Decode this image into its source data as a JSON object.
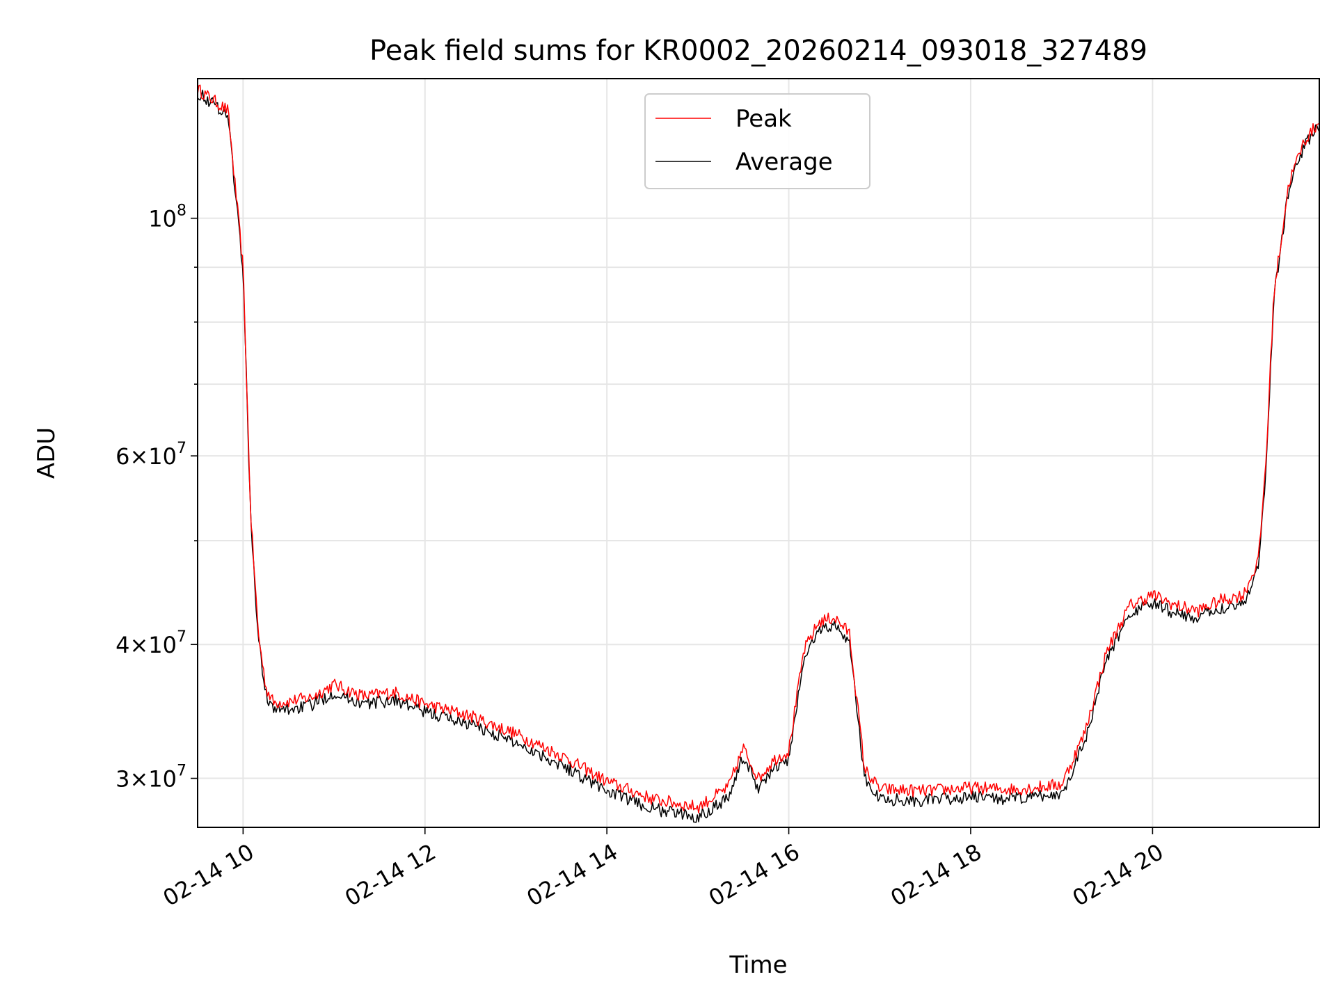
{
  "chart_data": {
    "type": "line",
    "title": "Peak field sums for KR0002_20260214_093018_327489",
    "xlabel": "Time",
    "ylabel": "ADU",
    "y_scale": "log",
    "grid": true,
    "legend_position": "top-center",
    "xlim": [
      "02-14 09:30",
      "02-14 21:50"
    ],
    "ylim": [
      27000000,
      135000000
    ],
    "x_ticks": [
      "02-14 10",
      "02-14 12",
      "02-14 14",
      "02-14 16",
      "02-14 18",
      "02-14 20"
    ],
    "y_ticks": [
      {
        "value": 30000000,
        "mantissa": "3",
        "exponent": "7"
      },
      {
        "value": 40000000,
        "mantissa": "4",
        "exponent": "7"
      },
      {
        "value": 60000000,
        "mantissa": "6",
        "exponent": "7"
      },
      {
        "value": 100000000,
        "base": "10",
        "exponent": "8"
      }
    ],
    "x": [
      "02-14 09:30",
      "02-14 09:40",
      "02-14 09:50",
      "02-14 10:00",
      "02-14 10:05",
      "02-14 10:10",
      "02-14 10:15",
      "02-14 10:20",
      "02-14 10:30",
      "02-14 10:45",
      "02-14 11:00",
      "02-14 11:10",
      "02-14 11:20",
      "02-14 11:40",
      "02-14 12:00",
      "02-14 12:30",
      "02-14 13:00",
      "02-14 13:30",
      "02-14 14:00",
      "02-14 14:30",
      "02-14 15:00",
      "02-14 15:20",
      "02-14 15:30",
      "02-14 15:40",
      "02-14 15:50",
      "02-14 16:00",
      "02-14 16:10",
      "02-14 16:20",
      "02-14 16:30",
      "02-14 16:40",
      "02-14 16:50",
      "02-14 17:00",
      "02-14 17:30",
      "02-14 18:00",
      "02-14 18:30",
      "02-14 19:00",
      "02-14 19:15",
      "02-14 19:30",
      "02-14 19:45",
      "02-14 20:00",
      "02-14 20:15",
      "02-14 20:30",
      "02-14 20:45",
      "02-14 21:00",
      "02-14 21:10",
      "02-14 21:15",
      "02-14 21:20",
      "02-14 21:30",
      "02-14 21:40",
      "02-14 21:50"
    ],
    "series": [
      {
        "name": "Peak",
        "color": "#ff0000",
        "values": [
          132000000,
          129000000,
          126000000,
          90000000,
          53000000,
          41000000,
          36500000,
          35300000,
          35400000,
          35700000,
          36700000,
          36200000,
          35800000,
          36100000,
          35200000,
          34300000,
          33000000,
          31500000,
          29800000,
          28700000,
          28200000,
          29400000,
          32000000,
          30000000,
          31200000,
          31800000,
          39500000,
          42000000,
          42400000,
          41000000,
          30600000,
          29300000,
          29200000,
          29400000,
          29300000,
          29600000,
          33000000,
          39500000,
          43500000,
          44500000,
          43500000,
          43000000,
          44000000,
          44500000,
          48000000,
          60000000,
          85000000,
          108000000,
          118000000,
          123000000
        ]
      },
      {
        "name": "Average",
        "color": "#000000",
        "values": [
          131000000,
          128000000,
          125000000,
          89000000,
          52500000,
          40500000,
          36000000,
          34700000,
          34800000,
          35100000,
          36100000,
          35600000,
          35200000,
          35500000,
          34600000,
          33700000,
          32400000,
          30900000,
          29200000,
          28100000,
          27600000,
          28800000,
          31400000,
          29400000,
          30600000,
          31200000,
          38800000,
          41300000,
          41700000,
          40300000,
          30000000,
          28700000,
          28600000,
          28800000,
          28700000,
          29000000,
          32400000,
          38800000,
          42800000,
          43700000,
          42800000,
          42300000,
          43300000,
          43700000,
          47300000,
          59000000,
          84000000,
          107000000,
          117000000,
          122000000
        ]
      }
    ]
  }
}
